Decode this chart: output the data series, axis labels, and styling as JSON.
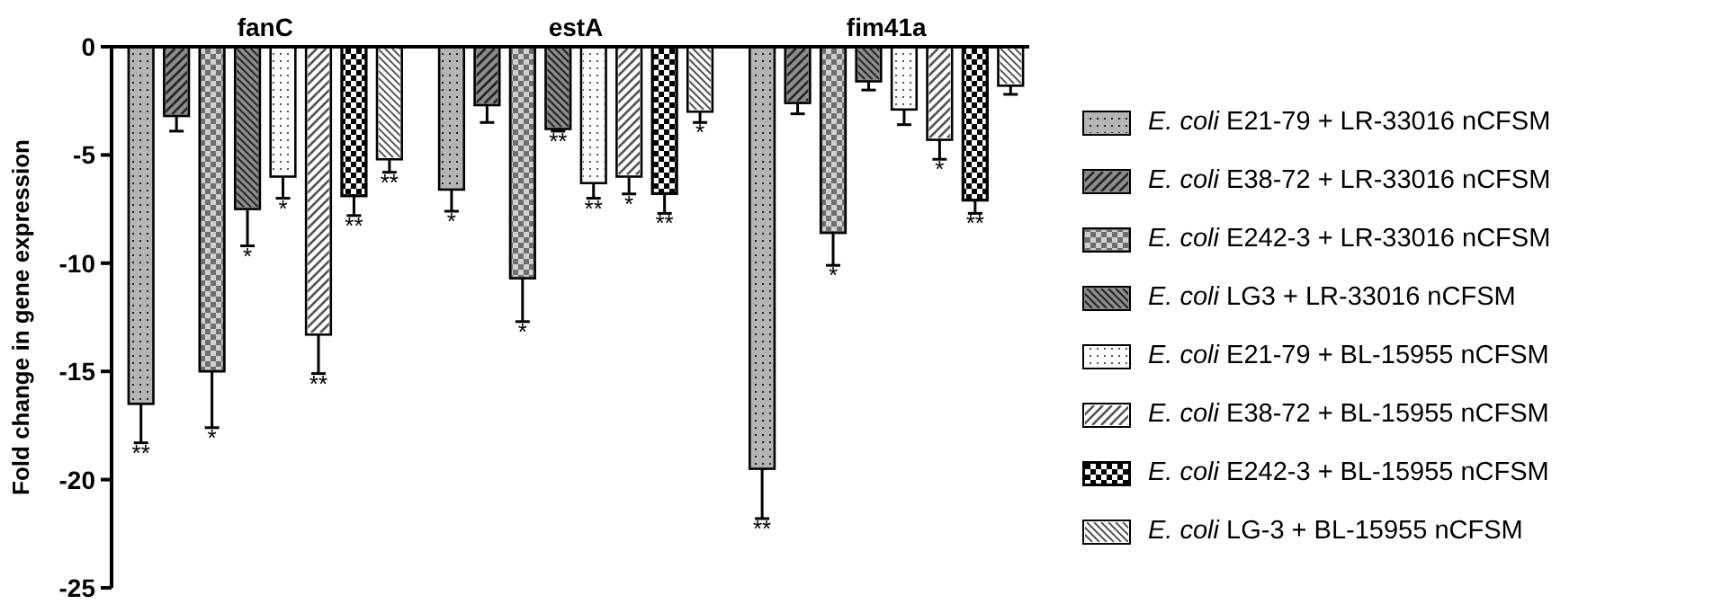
{
  "chart_data": {
    "type": "bar",
    "ylabel": "Fold change in gene expression",
    "categories": [
      "fanC",
      "estA",
      "fim41a"
    ],
    "ylim": [
      -25,
      0
    ],
    "yticks": [
      -25,
      -20,
      -15,
      -10,
      -5,
      0
    ],
    "legend": "right",
    "grid": false,
    "series": [
      {
        "name": "E. coli E21-79 + LR-33016 nCFSM",
        "color": "#b4b4b4",
        "values": [
          -16.5,
          -6.6,
          -19.5
        ],
        "errors": [
          1.8,
          1.0,
          2.3
        ],
        "value_labels": [
          "**",
          "*",
          "**"
        ]
      },
      {
        "name": "E. coli E38-72 + LR-33016 nCFSM",
        "color": "#8c8c8c",
        "values": [
          -3.2,
          -2.7,
          -2.6
        ],
        "errors": [
          0.7,
          0.8,
          0.5
        ],
        "value_labels": [
          null,
          null,
          null
        ]
      },
      {
        "name": "E. coli E242-3 + LR-33016 nCFSM",
        "color": "#6e6e6e",
        "values": [
          -15.0,
          -10.7,
          -8.6
        ],
        "errors": [
          2.6,
          2.0,
          1.5
        ],
        "value_labels": [
          "*",
          "*",
          "*"
        ]
      },
      {
        "name": "E. coli LG3 + LR-33016 nCFSM",
        "color": "#8c8c8c",
        "values": [
          -7.5,
          -3.8,
          -1.6
        ],
        "errors": [
          1.7,
          0.1,
          0.4
        ],
        "value_labels": [
          "*",
          "**",
          null
        ]
      },
      {
        "name": "E. coli E21-79 + BL-15955 nCFSM",
        "color": "#ffffff",
        "values": [
          -6.0,
          -6.3,
          -2.9
        ],
        "errors": [
          1.0,
          0.7,
          0.7
        ],
        "value_labels": [
          "*",
          "**",
          null
        ]
      },
      {
        "name": "E. coli E38-72 + BL-15955 nCFSM",
        "color": "#ffffff",
        "values": [
          -13.3,
          -6.0,
          -4.3
        ],
        "errors": [
          1.8,
          0.8,
          0.9
        ],
        "value_labels": [
          "**",
          "*",
          "*"
        ]
      },
      {
        "name": "E. coli E242-3 + BL-15955 nCFSM",
        "color": "#000000",
        "values": [
          -6.9,
          -6.8,
          -7.1
        ],
        "errors": [
          0.9,
          0.9,
          0.6
        ],
        "value_labels": [
          "**",
          "**",
          "**"
        ]
      },
      {
        "name": "E. coli LG-3 + BL-15955 nCFSM",
        "color": "#ffffff",
        "values": [
          -5.2,
          -3.0,
          -1.8
        ],
        "errors": [
          0.6,
          0.5,
          0.4
        ],
        "value_labels": [
          "**",
          "*",
          null
        ]
      }
    ]
  }
}
